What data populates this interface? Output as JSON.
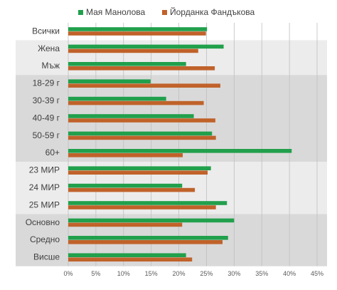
{
  "chart_data": {
    "type": "hbar",
    "categories": [
      "Всички",
      "Жена",
      "Мъж",
      "18-29 г",
      "30-39 г",
      "40-49 г",
      "50-59 г",
      "60+",
      "23 МИР",
      "24 МИР",
      "25 МИР",
      "Основно",
      "Средно",
      "Висше"
    ],
    "series": [
      {
        "name": "Мая Манолова",
        "color": "#21a04c",
        "values": [
          25.1,
          28.1,
          21.3,
          14.9,
          17.7,
          22.7,
          26,
          40.4,
          25.8,
          20.6,
          28.7,
          30,
          28.9,
          21.3
        ]
      },
      {
        "name": "Йорданка Фандъкова",
        "color": "#c0622a",
        "values": [
          24.9,
          23.5,
          26.5,
          27.5,
          24.5,
          26.6,
          26.7,
          20.7,
          25.2,
          22.9,
          26.7,
          20.6,
          27.9,
          22.4
        ]
      }
    ],
    "xlim": [
      0,
      45
    ],
    "xticks": [
      {
        "value": 0,
        "label": "0%"
      },
      {
        "value": 5,
        "label": "5%"
      },
      {
        "value": 10,
        "label": "10%"
      },
      {
        "value": 15,
        "label": "15%"
      },
      {
        "value": 20,
        "label": "20%"
      },
      {
        "value": 25,
        "label": "25%"
      },
      {
        "value": 30,
        "label": "30%"
      },
      {
        "value": 35,
        "label": "35%"
      },
      {
        "value": 40,
        "label": "40%"
      },
      {
        "value": 45,
        "label": "45%"
      }
    ],
    "grid": true,
    "legend": "top"
  }
}
